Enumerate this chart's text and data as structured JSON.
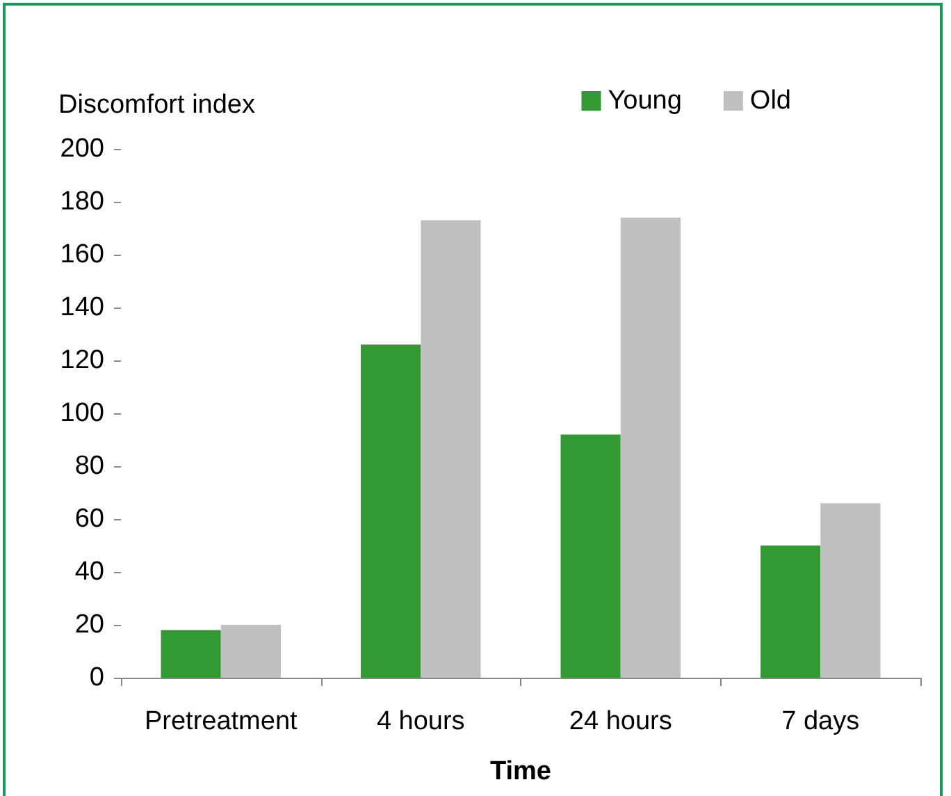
{
  "chart_data": {
    "type": "bar",
    "xlabel": "Time",
    "ylabel": "Discomfort index",
    "categories": [
      "Pretreatment",
      "4 hours",
      "24 hours",
      "7 days"
    ],
    "series": [
      {
        "name": "Young",
        "color": "#339933",
        "values": [
          18,
          126,
          92,
          50
        ]
      },
      {
        "name": "Old",
        "color": "#c0c0c0",
        "values": [
          20,
          173,
          174,
          66
        ]
      }
    ],
    "ylim": [
      0,
      200
    ],
    "yticks": [
      0,
      20,
      40,
      60,
      80,
      100,
      120,
      140,
      160,
      180,
      200
    ],
    "grid": false,
    "legend": "top right"
  }
}
